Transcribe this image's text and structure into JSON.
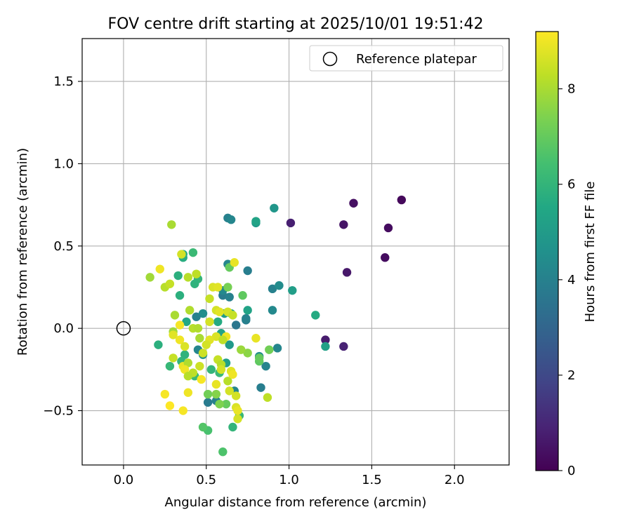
{
  "chart_data": {
    "type": "scatter",
    "title": "FOV centre drift starting at 2025/10/01 19:51:42",
    "xlabel": "Angular distance from reference (arcmin)",
    "ylabel": "Rotation from reference (arcmin)",
    "xlim": [
      -0.25,
      2.33
    ],
    "ylim": [
      -0.83,
      1.76
    ],
    "xticks": [
      0.0,
      0.5,
      1.0,
      1.5,
      2.0
    ],
    "xtick_labels": [
      "0.0",
      "0.5",
      "1.0",
      "1.5",
      "2.0"
    ],
    "yticks": [
      -0.5,
      0.0,
      0.5,
      1.0,
      1.5
    ],
    "ytick_labels": [
      "−0.5",
      "0.0",
      "0.5",
      "1.0",
      "1.5"
    ],
    "grid": true,
    "legend": {
      "placement": "top-right",
      "entries": [
        "Reference platepar"
      ]
    },
    "reference_point": {
      "x": 0.0,
      "y": 0.0,
      "label": "Reference platepar"
    },
    "colorbar": {
      "label": "Hours from first FF file",
      "range": [
        0,
        9.2
      ],
      "ticks": [
        0,
        2,
        4,
        6,
        8
      ],
      "tick_labels": [
        "0",
        "2",
        "4",
        "6",
        "8"
      ],
      "colormap": "viridis"
    },
    "points": [
      {
        "x": 1.68,
        "y": 0.78,
        "hours": 0.2
      },
      {
        "x": 1.39,
        "y": 0.76,
        "hours": 0.4
      },
      {
        "x": 1.6,
        "y": 0.61,
        "hours": 0.3
      },
      {
        "x": 1.33,
        "y": 0.63,
        "hours": 0.5
      },
      {
        "x": 1.01,
        "y": 0.64,
        "hours": 0.8
      },
      {
        "x": 1.58,
        "y": 0.43,
        "hours": 0.3
      },
      {
        "x": 1.35,
        "y": 0.34,
        "hours": 0.6
      },
      {
        "x": 1.22,
        "y": -0.07,
        "hours": 0.7
      },
      {
        "x": 1.33,
        "y": -0.11,
        "hours": 0.9
      },
      {
        "x": 0.91,
        "y": 0.73,
        "hours": 4.8
      },
      {
        "x": 0.63,
        "y": 0.67,
        "hours": 4.0
      },
      {
        "x": 0.65,
        "y": 0.66,
        "hours": 4.2
      },
      {
        "x": 0.8,
        "y": 0.64,
        "hours": 4.9
      },
      {
        "x": 0.8,
        "y": 0.65,
        "hours": 5.3
      },
      {
        "x": 0.75,
        "y": 0.35,
        "hours": 3.9
      },
      {
        "x": 0.63,
        "y": 0.39,
        "hours": 4.2
      },
      {
        "x": 0.9,
        "y": 0.24,
        "hours": 4.0
      },
      {
        "x": 0.94,
        "y": 0.26,
        "hours": 4.4
      },
      {
        "x": 1.02,
        "y": 0.23,
        "hours": 5.1
      },
      {
        "x": 1.16,
        "y": 0.08,
        "hours": 5.6
      },
      {
        "x": 0.9,
        "y": 0.11,
        "hours": 4.3
      },
      {
        "x": 0.74,
        "y": 0.05,
        "hours": 3.9
      },
      {
        "x": 0.74,
        "y": 0.06,
        "hours": 4.0
      },
      {
        "x": 0.68,
        "y": 0.02,
        "hours": 3.6
      },
      {
        "x": 1.22,
        "y": -0.11,
        "hours": 5.2
      },
      {
        "x": 0.93,
        "y": -0.12,
        "hours": 4.2
      },
      {
        "x": 0.82,
        "y": -0.17,
        "hours": 4.5
      },
      {
        "x": 0.86,
        "y": -0.23,
        "hours": 4.1
      },
      {
        "x": 0.83,
        "y": -0.36,
        "hours": 3.9
      },
      {
        "x": 0.6,
        "y": 0.2,
        "hours": 3.8
      },
      {
        "x": 0.64,
        "y": 0.19,
        "hours": 4.0
      },
      {
        "x": 0.6,
        "y": 0.23,
        "hours": 4.3
      },
      {
        "x": 0.48,
        "y": 0.09,
        "hours": 4.5
      },
      {
        "x": 0.44,
        "y": 0.07,
        "hours": 4.0
      },
      {
        "x": 0.45,
        "y": -0.13,
        "hours": 4.2
      },
      {
        "x": 0.48,
        "y": -0.16,
        "hours": 4.6
      },
      {
        "x": 0.56,
        "y": -0.44,
        "hours": 4.0
      },
      {
        "x": 0.51,
        "y": -0.45,
        "hours": 3.8
      },
      {
        "x": 0.67,
        "y": -0.38,
        "hours": 4.2
      },
      {
        "x": 0.61,
        "y": 0.09,
        "hours": 5.0
      },
      {
        "x": 0.64,
        "y": -0.1,
        "hours": 4.9
      },
      {
        "x": 0.75,
        "y": 0.11,
        "hours": 5.3
      },
      {
        "x": 0.65,
        "y": 0.09,
        "hours": 5.4
      },
      {
        "x": 0.57,
        "y": 0.04,
        "hours": 5.6
      },
      {
        "x": 0.59,
        "y": -0.03,
        "hours": 5.3
      },
      {
        "x": 0.62,
        "y": -0.21,
        "hours": 5.2
      },
      {
        "x": 0.36,
        "y": 0.45,
        "hours": 5.5
      },
      {
        "x": 0.36,
        "y": 0.43,
        "hours": 5.7
      },
      {
        "x": 0.42,
        "y": 0.46,
        "hours": 6.2
      },
      {
        "x": 0.33,
        "y": 0.32,
        "hours": 5.8
      },
      {
        "x": 0.45,
        "y": 0.3,
        "hours": 6.0
      },
      {
        "x": 0.43,
        "y": 0.27,
        "hours": 5.9
      },
      {
        "x": 0.34,
        "y": 0.2,
        "hours": 5.8
      },
      {
        "x": 0.38,
        "y": 0.04,
        "hours": 5.5
      },
      {
        "x": 0.37,
        "y": -0.16,
        "hours": 5.9
      },
      {
        "x": 0.35,
        "y": -0.2,
        "hours": 6.0
      },
      {
        "x": 0.21,
        "y": -0.1,
        "hours": 5.8
      },
      {
        "x": 0.28,
        "y": -0.23,
        "hours": 6.1
      },
      {
        "x": 0.43,
        "y": -0.29,
        "hours": 6.2
      },
      {
        "x": 0.53,
        "y": -0.25,
        "hours": 6.0
      },
      {
        "x": 0.58,
        "y": -0.27,
        "hours": 6.2
      },
      {
        "x": 0.7,
        "y": -0.53,
        "hours": 6.1
      },
      {
        "x": 0.66,
        "y": -0.6,
        "hours": 6.0
      },
      {
        "x": 0.51,
        "y": -0.62,
        "hours": 6.5
      },
      {
        "x": 0.48,
        "y": -0.6,
        "hours": 6.7
      },
      {
        "x": 0.6,
        "y": -0.75,
        "hours": 6.6
      },
      {
        "x": 0.72,
        "y": 0.2,
        "hours": 6.9
      },
      {
        "x": 0.63,
        "y": 0.25,
        "hours": 7.3
      },
      {
        "x": 0.64,
        "y": 0.37,
        "hours": 7.0
      },
      {
        "x": 0.82,
        "y": -0.2,
        "hours": 6.9
      },
      {
        "x": 0.82,
        "y": -0.18,
        "hours": 7.0
      },
      {
        "x": 0.88,
        "y": -0.13,
        "hours": 7.2
      },
      {
        "x": 0.75,
        "y": -0.15,
        "hours": 7.6
      },
      {
        "x": 0.71,
        "y": -0.13,
        "hours": 7.8
      },
      {
        "x": 0.51,
        "y": -0.4,
        "hours": 7.2
      },
      {
        "x": 0.56,
        "y": -0.4,
        "hours": 7.5
      },
      {
        "x": 0.62,
        "y": -0.46,
        "hours": 7.0
      },
      {
        "x": 0.58,
        "y": -0.46,
        "hours": 7.4
      },
      {
        "x": 0.87,
        "y": -0.42,
        "hours": 8.3
      },
      {
        "x": 0.16,
        "y": 0.31,
        "hours": 7.9
      },
      {
        "x": 0.25,
        "y": 0.25,
        "hours": 8.2
      },
      {
        "x": 0.28,
        "y": 0.27,
        "hours": 8.4
      },
      {
        "x": 0.29,
        "y": 0.63,
        "hours": 8.0
      },
      {
        "x": 0.35,
        "y": 0.45,
        "hours": 8.6
      },
      {
        "x": 0.39,
        "y": 0.31,
        "hours": 8.2
      },
      {
        "x": 0.44,
        "y": 0.33,
        "hours": 8.3
      },
      {
        "x": 0.22,
        "y": 0.36,
        "hours": 9.0
      },
      {
        "x": 0.4,
        "y": 0.11,
        "hours": 8.1
      },
      {
        "x": 0.31,
        "y": 0.08,
        "hours": 8.0
      },
      {
        "x": 0.3,
        "y": -0.02,
        "hours": 7.9
      },
      {
        "x": 0.42,
        "y": 0.0,
        "hours": 8.2
      },
      {
        "x": 0.45,
        "y": 0.0,
        "hours": 8.1
      },
      {
        "x": 0.46,
        "y": -0.06,
        "hours": 8.0
      },
      {
        "x": 0.54,
        "y": 0.25,
        "hours": 8.7
      },
      {
        "x": 0.52,
        "y": 0.18,
        "hours": 8.4
      },
      {
        "x": 0.57,
        "y": 0.25,
        "hours": 8.8
      },
      {
        "x": 0.52,
        "y": 0.04,
        "hours": 8.6
      },
      {
        "x": 0.56,
        "y": 0.11,
        "hours": 8.6
      },
      {
        "x": 0.58,
        "y": 0.1,
        "hours": 8.8
      },
      {
        "x": 0.63,
        "y": 0.1,
        "hours": 8.6
      },
      {
        "x": 0.66,
        "y": 0.08,
        "hours": 8.4
      },
      {
        "x": 0.56,
        "y": -0.05,
        "hours": 8.7
      },
      {
        "x": 0.62,
        "y": -0.05,
        "hours": 9.0
      },
      {
        "x": 0.6,
        "y": -0.07,
        "hours": 8.3
      },
      {
        "x": 0.67,
        "y": 0.4,
        "hours": 8.9
      },
      {
        "x": 0.52,
        "y": -0.07,
        "hours": 8.8
      },
      {
        "x": 0.5,
        "y": -0.1,
        "hours": 8.6
      },
      {
        "x": 0.48,
        "y": -0.15,
        "hours": 8.5
      },
      {
        "x": 0.57,
        "y": -0.19,
        "hours": 8.4
      },
      {
        "x": 0.59,
        "y": -0.22,
        "hours": 8.2
      },
      {
        "x": 0.59,
        "y": -0.25,
        "hours": 8.6
      },
      {
        "x": 0.56,
        "y": -0.34,
        "hours": 8.9
      },
      {
        "x": 0.63,
        "y": -0.32,
        "hours": 8.2
      },
      {
        "x": 0.65,
        "y": -0.26,
        "hours": 8.8
      },
      {
        "x": 0.66,
        "y": -0.28,
        "hours": 9.0
      },
      {
        "x": 0.64,
        "y": -0.38,
        "hours": 8.6
      },
      {
        "x": 0.68,
        "y": -0.41,
        "hours": 8.6
      },
      {
        "x": 0.68,
        "y": -0.48,
        "hours": 8.7
      },
      {
        "x": 0.69,
        "y": -0.5,
        "hours": 8.9
      },
      {
        "x": 0.69,
        "y": -0.55,
        "hours": 8.6
      },
      {
        "x": 0.8,
        "y": -0.06,
        "hours": 8.9
      },
      {
        "x": 0.34,
        "y": 0.02,
        "hours": 9.1
      },
      {
        "x": 0.3,
        "y": -0.04,
        "hours": 8.8
      },
      {
        "x": 0.34,
        "y": -0.07,
        "hours": 9.0
      },
      {
        "x": 0.37,
        "y": -0.11,
        "hours": 8.7
      },
      {
        "x": 0.3,
        "y": -0.18,
        "hours": 8.4
      },
      {
        "x": 0.36,
        "y": -0.23,
        "hours": 8.9
      },
      {
        "x": 0.39,
        "y": -0.21,
        "hours": 8.1
      },
      {
        "x": 0.37,
        "y": -0.25,
        "hours": 9.0
      },
      {
        "x": 0.42,
        "y": -0.27,
        "hours": 8.3
      },
      {
        "x": 0.46,
        "y": -0.23,
        "hours": 8.5
      },
      {
        "x": 0.47,
        "y": -0.31,
        "hours": 9.1
      },
      {
        "x": 0.39,
        "y": -0.29,
        "hours": 8.2
      },
      {
        "x": 0.25,
        "y": -0.4,
        "hours": 9.1
      },
      {
        "x": 0.39,
        "y": -0.39,
        "hours": 9.0
      },
      {
        "x": 0.28,
        "y": -0.47,
        "hours": 9.2
      },
      {
        "x": 0.36,
        "y": -0.5,
        "hours": 9.1
      }
    ]
  }
}
